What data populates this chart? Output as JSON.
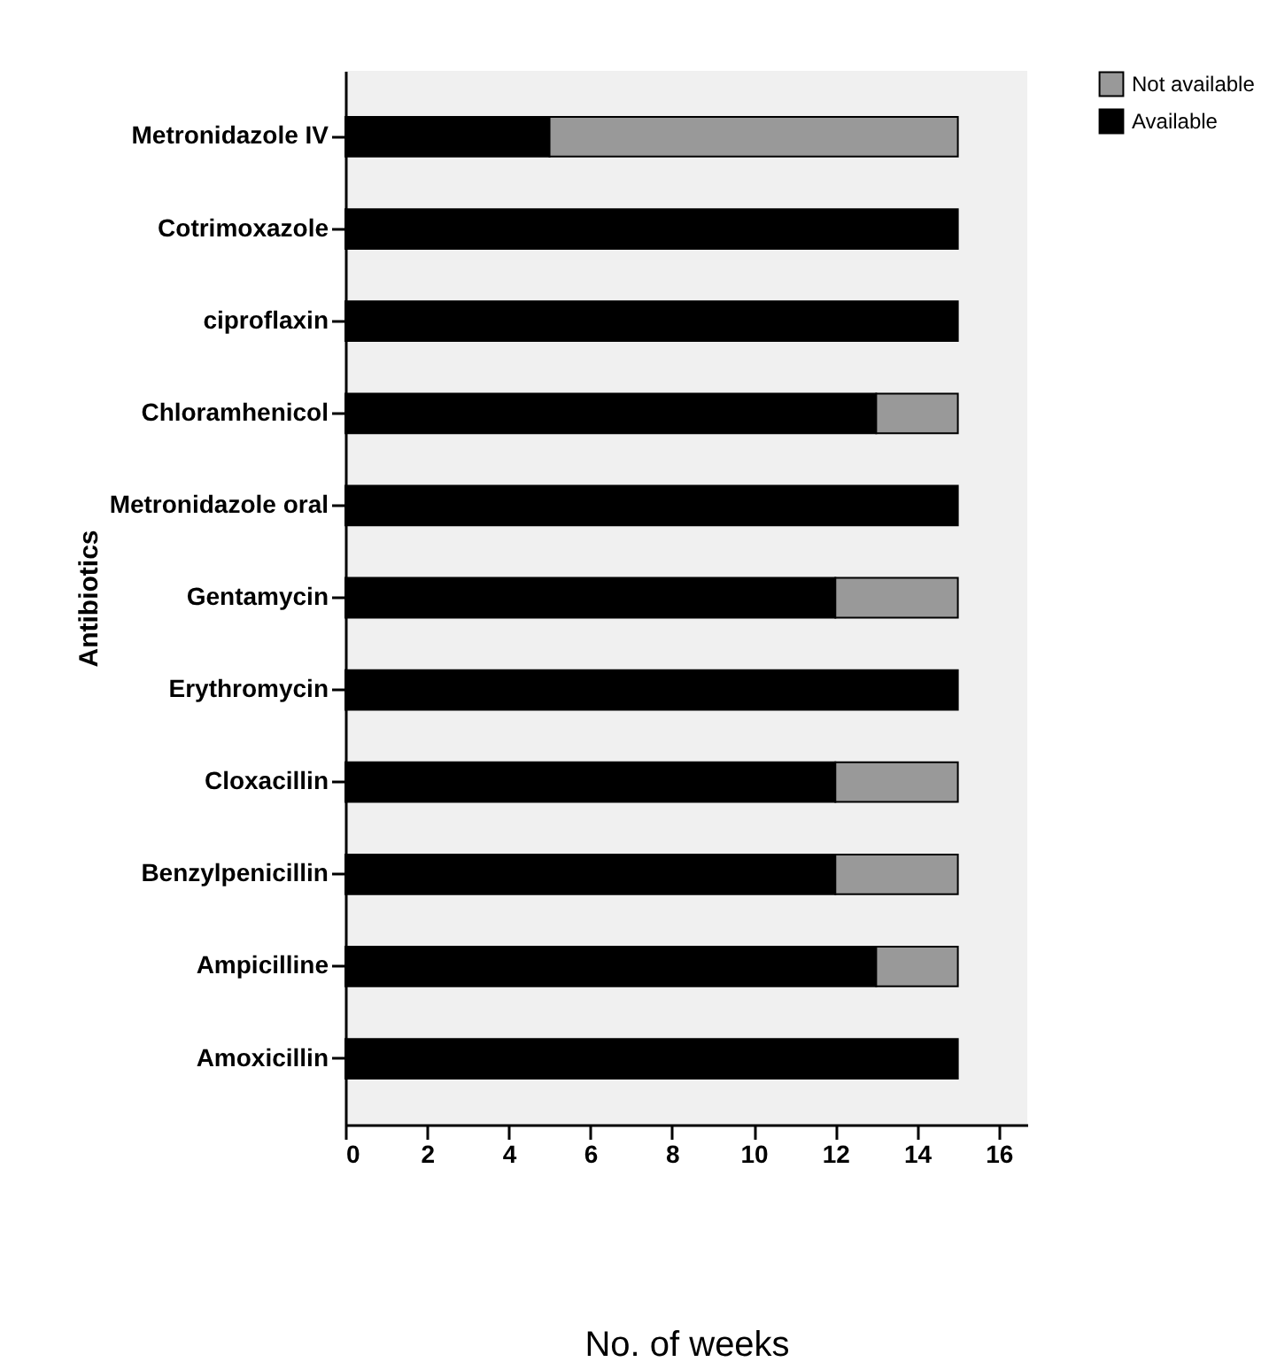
{
  "chart_data": {
    "type": "bar",
    "orientation": "horizontal",
    "stacked": true,
    "xlabel": "No. of weeks",
    "ylabel": "Antibiotics",
    "categories": [
      "Metronidazole  IV",
      "Cotrimoxazole",
      "ciproflaxin",
      "Chloramhenicol",
      "Metronidazole oral",
      "Gentamycin",
      "Erythromycin",
      "Cloxacillin",
      "Benzylpenicillin",
      "Ampicilline",
      "Amoxicillin"
    ],
    "series": [
      {
        "name": "Available",
        "color": "#000000",
        "values": [
          5,
          15,
          15,
          13,
          15,
          12,
          15,
          12,
          12,
          13,
          15
        ]
      },
      {
        "name": "Not available",
        "color": "#999999",
        "values": [
          10,
          0,
          0,
          2,
          0,
          3,
          0,
          3,
          3,
          2,
          0
        ]
      }
    ],
    "xlim": [
      0,
      16.7
    ],
    "xticks": [
      0,
      2,
      4,
      6,
      8,
      10,
      12,
      14,
      16
    ],
    "grid": false,
    "legend": "top right"
  }
}
